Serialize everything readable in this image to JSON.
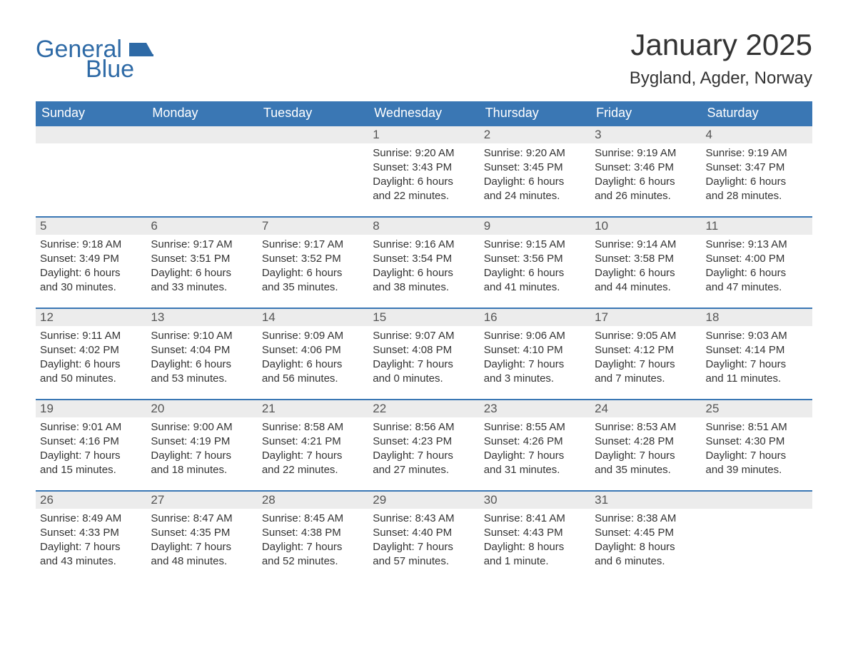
{
  "brand": {
    "word1": "General",
    "word2": "Blue"
  },
  "colors": {
    "brand_blue": "#2e6aa6",
    "header_blue": "#3a77b4",
    "daynum_bg": "#ececec",
    "text": "#333333",
    "page_bg": "#ffffff"
  },
  "title": {
    "month_year": "January 2025",
    "location": "Bygland, Agder, Norway"
  },
  "weekdays": [
    "Sunday",
    "Monday",
    "Tuesday",
    "Wednesday",
    "Thursday",
    "Friday",
    "Saturday"
  ],
  "weeks": [
    [
      null,
      null,
      null,
      {
        "n": "1",
        "sunrise": "Sunrise: 9:20 AM",
        "sunset": "Sunset: 3:43 PM",
        "dl1": "Daylight: 6 hours",
        "dl2": "and 22 minutes."
      },
      {
        "n": "2",
        "sunrise": "Sunrise: 9:20 AM",
        "sunset": "Sunset: 3:45 PM",
        "dl1": "Daylight: 6 hours",
        "dl2": "and 24 minutes."
      },
      {
        "n": "3",
        "sunrise": "Sunrise: 9:19 AM",
        "sunset": "Sunset: 3:46 PM",
        "dl1": "Daylight: 6 hours",
        "dl2": "and 26 minutes."
      },
      {
        "n": "4",
        "sunrise": "Sunrise: 9:19 AM",
        "sunset": "Sunset: 3:47 PM",
        "dl1": "Daylight: 6 hours",
        "dl2": "and 28 minutes."
      }
    ],
    [
      {
        "n": "5",
        "sunrise": "Sunrise: 9:18 AM",
        "sunset": "Sunset: 3:49 PM",
        "dl1": "Daylight: 6 hours",
        "dl2": "and 30 minutes."
      },
      {
        "n": "6",
        "sunrise": "Sunrise: 9:17 AM",
        "sunset": "Sunset: 3:51 PM",
        "dl1": "Daylight: 6 hours",
        "dl2": "and 33 minutes."
      },
      {
        "n": "7",
        "sunrise": "Sunrise: 9:17 AM",
        "sunset": "Sunset: 3:52 PM",
        "dl1": "Daylight: 6 hours",
        "dl2": "and 35 minutes."
      },
      {
        "n": "8",
        "sunrise": "Sunrise: 9:16 AM",
        "sunset": "Sunset: 3:54 PM",
        "dl1": "Daylight: 6 hours",
        "dl2": "and 38 minutes."
      },
      {
        "n": "9",
        "sunrise": "Sunrise: 9:15 AM",
        "sunset": "Sunset: 3:56 PM",
        "dl1": "Daylight: 6 hours",
        "dl2": "and 41 minutes."
      },
      {
        "n": "10",
        "sunrise": "Sunrise: 9:14 AM",
        "sunset": "Sunset: 3:58 PM",
        "dl1": "Daylight: 6 hours",
        "dl2": "and 44 minutes."
      },
      {
        "n": "11",
        "sunrise": "Sunrise: 9:13 AM",
        "sunset": "Sunset: 4:00 PM",
        "dl1": "Daylight: 6 hours",
        "dl2": "and 47 minutes."
      }
    ],
    [
      {
        "n": "12",
        "sunrise": "Sunrise: 9:11 AM",
        "sunset": "Sunset: 4:02 PM",
        "dl1": "Daylight: 6 hours",
        "dl2": "and 50 minutes."
      },
      {
        "n": "13",
        "sunrise": "Sunrise: 9:10 AM",
        "sunset": "Sunset: 4:04 PM",
        "dl1": "Daylight: 6 hours",
        "dl2": "and 53 minutes."
      },
      {
        "n": "14",
        "sunrise": "Sunrise: 9:09 AM",
        "sunset": "Sunset: 4:06 PM",
        "dl1": "Daylight: 6 hours",
        "dl2": "and 56 minutes."
      },
      {
        "n": "15",
        "sunrise": "Sunrise: 9:07 AM",
        "sunset": "Sunset: 4:08 PM",
        "dl1": "Daylight: 7 hours",
        "dl2": "and 0 minutes."
      },
      {
        "n": "16",
        "sunrise": "Sunrise: 9:06 AM",
        "sunset": "Sunset: 4:10 PM",
        "dl1": "Daylight: 7 hours",
        "dl2": "and 3 minutes."
      },
      {
        "n": "17",
        "sunrise": "Sunrise: 9:05 AM",
        "sunset": "Sunset: 4:12 PM",
        "dl1": "Daylight: 7 hours",
        "dl2": "and 7 minutes."
      },
      {
        "n": "18",
        "sunrise": "Sunrise: 9:03 AM",
        "sunset": "Sunset: 4:14 PM",
        "dl1": "Daylight: 7 hours",
        "dl2": "and 11 minutes."
      }
    ],
    [
      {
        "n": "19",
        "sunrise": "Sunrise: 9:01 AM",
        "sunset": "Sunset: 4:16 PM",
        "dl1": "Daylight: 7 hours",
        "dl2": "and 15 minutes."
      },
      {
        "n": "20",
        "sunrise": "Sunrise: 9:00 AM",
        "sunset": "Sunset: 4:19 PM",
        "dl1": "Daylight: 7 hours",
        "dl2": "and 18 minutes."
      },
      {
        "n": "21",
        "sunrise": "Sunrise: 8:58 AM",
        "sunset": "Sunset: 4:21 PM",
        "dl1": "Daylight: 7 hours",
        "dl2": "and 22 minutes."
      },
      {
        "n": "22",
        "sunrise": "Sunrise: 8:56 AM",
        "sunset": "Sunset: 4:23 PM",
        "dl1": "Daylight: 7 hours",
        "dl2": "and 27 minutes."
      },
      {
        "n": "23",
        "sunrise": "Sunrise: 8:55 AM",
        "sunset": "Sunset: 4:26 PM",
        "dl1": "Daylight: 7 hours",
        "dl2": "and 31 minutes."
      },
      {
        "n": "24",
        "sunrise": "Sunrise: 8:53 AM",
        "sunset": "Sunset: 4:28 PM",
        "dl1": "Daylight: 7 hours",
        "dl2": "and 35 minutes."
      },
      {
        "n": "25",
        "sunrise": "Sunrise: 8:51 AM",
        "sunset": "Sunset: 4:30 PM",
        "dl1": "Daylight: 7 hours",
        "dl2": "and 39 minutes."
      }
    ],
    [
      {
        "n": "26",
        "sunrise": "Sunrise: 8:49 AM",
        "sunset": "Sunset: 4:33 PM",
        "dl1": "Daylight: 7 hours",
        "dl2": "and 43 minutes."
      },
      {
        "n": "27",
        "sunrise": "Sunrise: 8:47 AM",
        "sunset": "Sunset: 4:35 PM",
        "dl1": "Daylight: 7 hours",
        "dl2": "and 48 minutes."
      },
      {
        "n": "28",
        "sunrise": "Sunrise: 8:45 AM",
        "sunset": "Sunset: 4:38 PM",
        "dl1": "Daylight: 7 hours",
        "dl2": "and 52 minutes."
      },
      {
        "n": "29",
        "sunrise": "Sunrise: 8:43 AM",
        "sunset": "Sunset: 4:40 PM",
        "dl1": "Daylight: 7 hours",
        "dl2": "and 57 minutes."
      },
      {
        "n": "30",
        "sunrise": "Sunrise: 8:41 AM",
        "sunset": "Sunset: 4:43 PM",
        "dl1": "Daylight: 8 hours",
        "dl2": "and 1 minute."
      },
      {
        "n": "31",
        "sunrise": "Sunrise: 8:38 AM",
        "sunset": "Sunset: 4:45 PM",
        "dl1": "Daylight: 8 hours",
        "dl2": "and 6 minutes."
      },
      null
    ]
  ]
}
